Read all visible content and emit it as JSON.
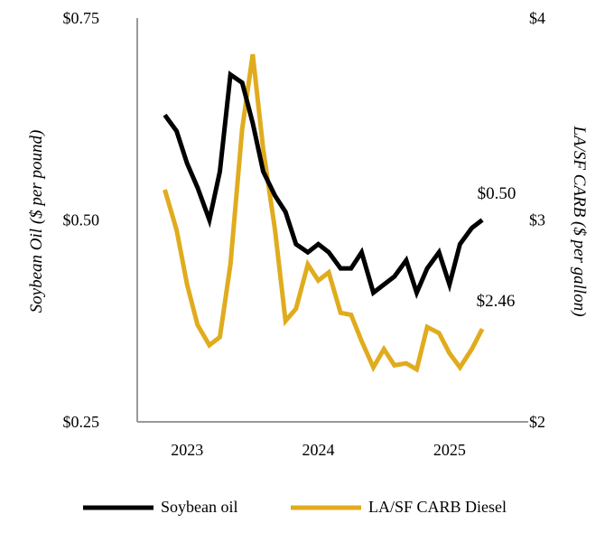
{
  "chart_data": {
    "type": "line",
    "x_ticks": [
      {
        "label": "2023",
        "x": 2023.0
      },
      {
        "label": "2024",
        "x": 2024.0
      },
      {
        "label": "2025",
        "x": 2025.0
      }
    ],
    "xlim": [
      2022.62,
      2025.6
    ],
    "y_left": {
      "label": "Soybean Oil ($ per pound)",
      "range": [
        0.25,
        0.75
      ],
      "ticks": [
        {
          "label": "$0.75",
          "value": 0.75
        },
        {
          "label": "$0.50",
          "value": 0.5
        },
        {
          "label": "$0.25",
          "value": 0.25
        }
      ]
    },
    "y_right": {
      "label": "LA/SF CARB ($ per gallon)",
      "range": [
        2,
        4
      ],
      "ticks": [
        {
          "label": "$4",
          "value": 4
        },
        {
          "label": "$3",
          "value": 3
        },
        {
          "label": "$2",
          "value": 2
        }
      ]
    },
    "series": [
      {
        "name": "Soybean oil",
        "axis": "left",
        "color": "#000000",
        "points": [
          [
            2022.83,
            0.63
          ],
          [
            2022.92,
            0.61
          ],
          [
            2023.0,
            0.57
          ],
          [
            2023.08,
            0.54
          ],
          [
            2023.17,
            0.5
          ],
          [
            2023.25,
            0.56
          ],
          [
            2023.33,
            0.68
          ],
          [
            2023.42,
            0.67
          ],
          [
            2023.5,
            0.62
          ],
          [
            2023.58,
            0.56
          ],
          [
            2023.67,
            0.53
          ],
          [
            2023.75,
            0.51
          ],
          [
            2023.83,
            0.47
          ],
          [
            2023.92,
            0.46
          ],
          [
            2024.0,
            0.47
          ],
          [
            2024.08,
            0.46
          ],
          [
            2024.17,
            0.44
          ],
          [
            2024.25,
            0.44
          ],
          [
            2024.33,
            0.46
          ],
          [
            2024.42,
            0.41
          ],
          [
            2024.5,
            0.42
          ],
          [
            2024.58,
            0.43
          ],
          [
            2024.67,
            0.45
          ],
          [
            2024.75,
            0.41
          ],
          [
            2024.83,
            0.44
          ],
          [
            2024.92,
            0.46
          ],
          [
            2025.0,
            0.42
          ],
          [
            2025.08,
            0.47
          ],
          [
            2025.17,
            0.49
          ],
          [
            2025.25,
            0.5
          ]
        ]
      },
      {
        "name": "LA/SF CARB Diesel",
        "axis": "right",
        "color": "#E0AC1E",
        "points": [
          [
            2022.83,
            3.15
          ],
          [
            2022.92,
            2.95
          ],
          [
            2023.0,
            2.68
          ],
          [
            2023.08,
            2.48
          ],
          [
            2023.17,
            2.38
          ],
          [
            2023.25,
            2.42
          ],
          [
            2023.33,
            2.78
          ],
          [
            2023.42,
            3.45
          ],
          [
            2023.5,
            3.82
          ],
          [
            2023.58,
            3.35
          ],
          [
            2023.67,
            2.95
          ],
          [
            2023.75,
            2.5
          ],
          [
            2023.83,
            2.56
          ],
          [
            2023.92,
            2.78
          ],
          [
            2024.0,
            2.7
          ],
          [
            2024.08,
            2.74
          ],
          [
            2024.17,
            2.54
          ],
          [
            2024.25,
            2.53
          ],
          [
            2024.33,
            2.4
          ],
          [
            2024.42,
            2.27
          ],
          [
            2024.5,
            2.36
          ],
          [
            2024.58,
            2.28
          ],
          [
            2024.67,
            2.29
          ],
          [
            2024.75,
            2.26
          ],
          [
            2024.83,
            2.47
          ],
          [
            2024.92,
            2.44
          ],
          [
            2025.0,
            2.34
          ],
          [
            2025.08,
            2.27
          ],
          [
            2025.17,
            2.36
          ],
          [
            2025.25,
            2.46
          ]
        ]
      }
    ],
    "annotations": [
      {
        "text": "$0.50",
        "series": "Soybean oil"
      },
      {
        "text": "$2.46",
        "series": "LA/SF CARB Diesel"
      }
    ],
    "legend": {
      "placement": "bottom",
      "entries": [
        {
          "label": "Soybean oil",
          "color": "#000000"
        },
        {
          "label": "LA/SF CARB Diesel",
          "color": "#E0AC1E"
        }
      ]
    },
    "grid": false
  }
}
